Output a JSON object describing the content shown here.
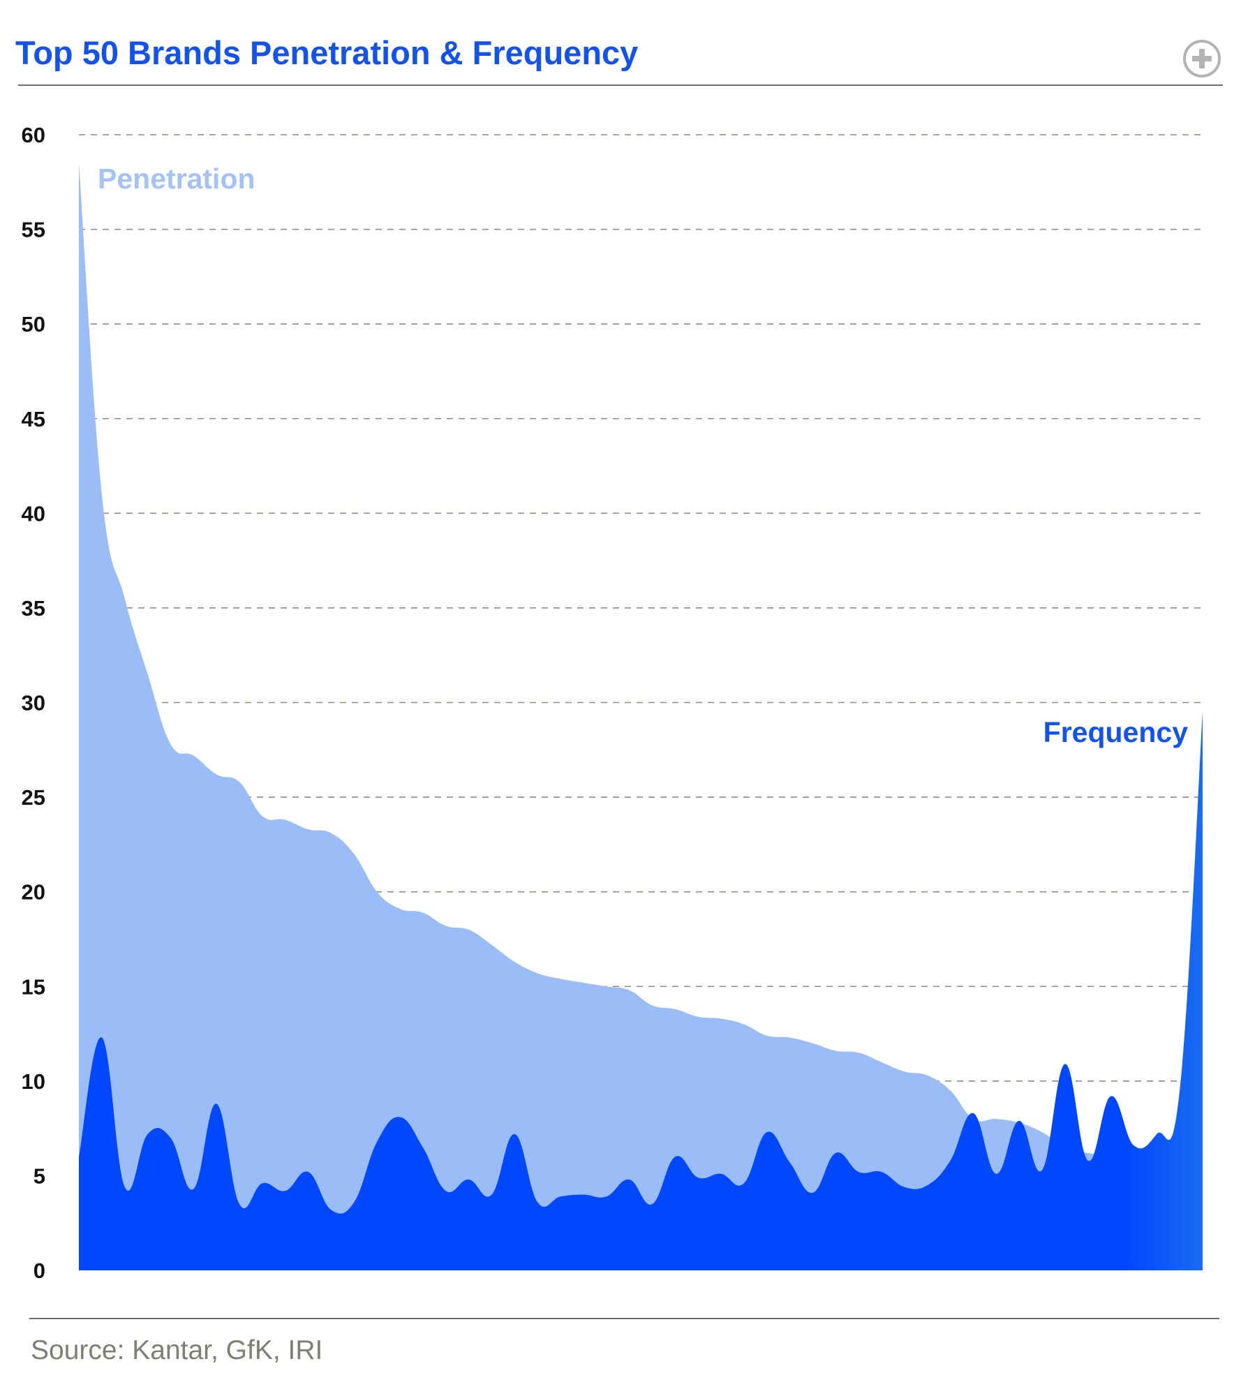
{
  "header": {
    "title": "Top 50 Brands Penetration & Frequency",
    "expand_icon": "plus-circle-icon"
  },
  "footer": {
    "source": "Source: Kantar, GfK, IRI"
  },
  "colors": {
    "title": "#1152f0",
    "penetration": "#9bbdf7",
    "frequency": "#0047ff",
    "frequency_tail": "#1a6cf2",
    "gridline": "#8c8c80",
    "rule": "#6e6e6e",
    "source_text": "#7e7e72"
  },
  "chart_data": {
    "type": "area",
    "title": "Top 50 Brands Penetration & Frequency",
    "xlabel": "",
    "ylabel": "",
    "ylim": [
      0,
      60
    ],
    "yticks": [
      0,
      5,
      10,
      15,
      20,
      25,
      30,
      35,
      40,
      45,
      50,
      55,
      60
    ],
    "grid": true,
    "legend": "inline labels",
    "x": [
      1,
      2,
      3,
      4,
      5,
      6,
      7,
      8,
      9,
      10,
      11,
      12,
      13,
      14,
      15,
      16,
      17,
      18,
      19,
      20,
      21,
      22,
      23,
      24,
      25,
      26,
      27,
      28,
      29,
      30,
      31,
      32,
      33,
      34,
      35,
      36,
      37,
      38,
      39,
      40,
      41,
      42,
      43,
      44,
      45,
      46,
      47,
      48,
      49,
      50
    ],
    "series": [
      {
        "name": "Penetration",
        "values": [
          58.5,
          41,
          35.5,
          31.5,
          27.8,
          27.2,
          26.2,
          25.8,
          24,
          23.8,
          23.3,
          23.1,
          22,
          20,
          19.1,
          18.9,
          18.2,
          18,
          17.2,
          16.3,
          15.7,
          15.4,
          15.2,
          15,
          14.8,
          14,
          13.8,
          13.4,
          13.3,
          13,
          12.4,
          12.3,
          12,
          11.6,
          11.5,
          11,
          10.5,
          10.3,
          9.5,
          8,
          8,
          7.8,
          7.3,
          6.5,
          6.2,
          6.1,
          6.2,
          6.3,
          6.2,
          6.1
        ]
      },
      {
        "name": "Frequency",
        "values": [
          6,
          12.3,
          4.4,
          7.2,
          7,
          4.3,
          8.8,
          3.5,
          4.6,
          4.2,
          5.2,
          3.2,
          3.6,
          6.8,
          8.1,
          6.5,
          4.2,
          4.8,
          4,
          7.2,
          3.6,
          3.9,
          4,
          3.9,
          4.8,
          3.5,
          6,
          4.9,
          5.1,
          4.6,
          7.3,
          5.7,
          4.1,
          6.2,
          5.2,
          5.2,
          4.4,
          4.5,
          5.8,
          8.3,
          5.1,
          7.9,
          5.3,
          10.9,
          5.8,
          9.2,
          6.6,
          7.2,
          9.5,
          29.5
        ]
      }
    ]
  }
}
